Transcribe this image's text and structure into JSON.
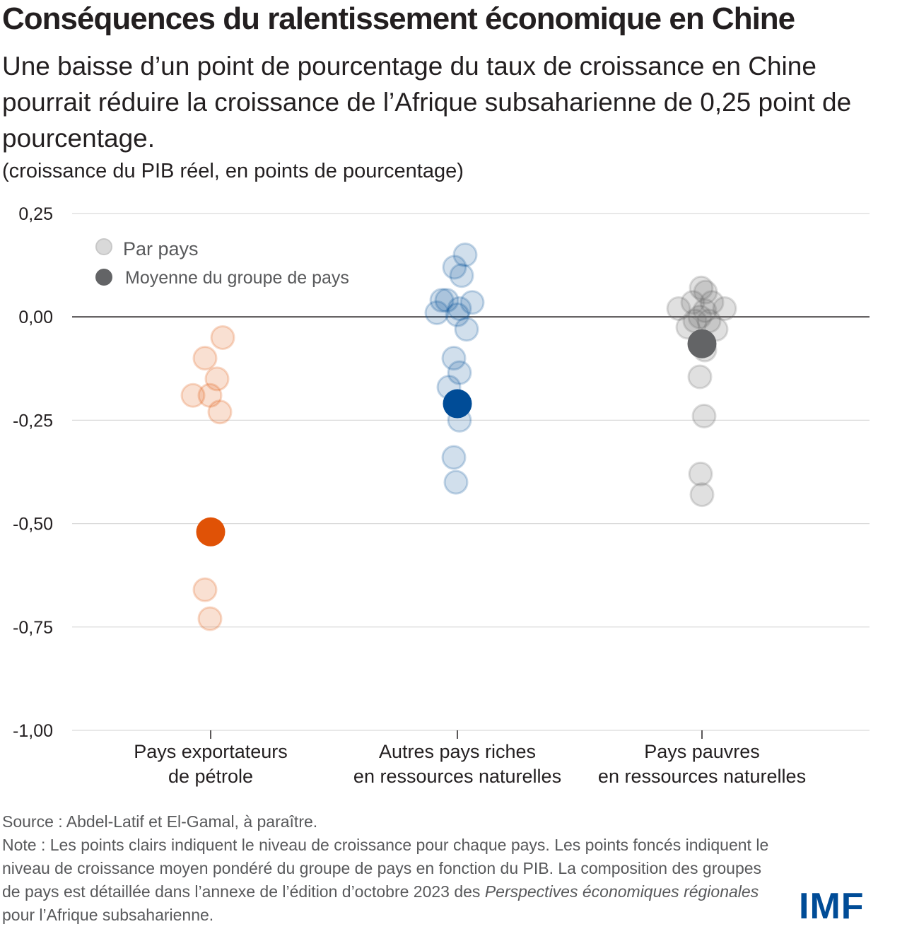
{
  "title": "Conséquences du ralentissement économique en Chine",
  "subtitle": "Une baisse d’un point de pourcentage du taux de croissance en Chine pourrait réduire la croissance de l’Afrique subsaharienne de 0,25 point de pourcentage.",
  "unit_label": "(croissance du PIB réel, en points de pourcentage)",
  "chart_data": {
    "type": "scatter",
    "ylim": [
      -1.0,
      0.25
    ],
    "yticks": [
      0.25,
      0.0,
      -0.25,
      -0.5,
      -0.75,
      -1.0
    ],
    "ytick_labels": [
      "0,25",
      "0,00",
      "-0,25",
      "-0,50",
      "-0,75",
      "-1,00"
    ],
    "categories": [
      {
        "line1": "Pays exportateurs",
        "line2": "de pétrole"
      },
      {
        "line1": "Autres pays riches",
        "line2": "en ressources naturelles"
      },
      {
        "line1": "Pays pauvres",
        "line2": "en ressources naturelles"
      }
    ],
    "legend": {
      "placement": "top-left",
      "by_country": "Par pays",
      "group_mean": "Moyenne du groupe de pays"
    },
    "grid": true,
    "series": [
      {
        "color": "#e05206",
        "countries": [
          -0.05,
          -0.1,
          -0.15,
          -0.19,
          -0.19,
          -0.23,
          -0.66,
          -0.73
        ],
        "mean": -0.52
      },
      {
        "color": "#004c97",
        "countries": [
          0.15,
          0.12,
          0.1,
          0.04,
          0.035,
          0.04,
          0.01,
          0.02,
          0.005,
          -0.03,
          -0.1,
          -0.135,
          -0.17,
          -0.25,
          -0.34,
          -0.4
        ],
        "mean": -0.21
      },
      {
        "color": "#636466",
        "countries": [
          0.07,
          0.06,
          0.02,
          0.02,
          0.035,
          0.035,
          -0.025,
          -0.03,
          0.0,
          0.015,
          -0.01,
          -0.01,
          -0.08,
          -0.145,
          -0.24,
          -0.38,
          -0.43
        ],
        "mean": -0.065
      }
    ],
    "legend_colors": {
      "light": "#d9d9d9",
      "dark": "#636466"
    }
  },
  "source": "Source : Abdel-Latif et El-Gamal, à paraître.",
  "note_prefix": "Note : Les points clairs indiquent le niveau de croissance pour chaque pays. Les points foncés indiquent le niveau de croissance moyen pondéré du groupe de pays en fonction du PIB. La composition des groupes de pays est détaillée dans l’annexe de l’édition d’octobre 2023 des ",
  "note_italic": "Perspectives économiques régionales",
  "note_suffix": " pour l’Afrique subsaharienne.",
  "logo": "IMF"
}
